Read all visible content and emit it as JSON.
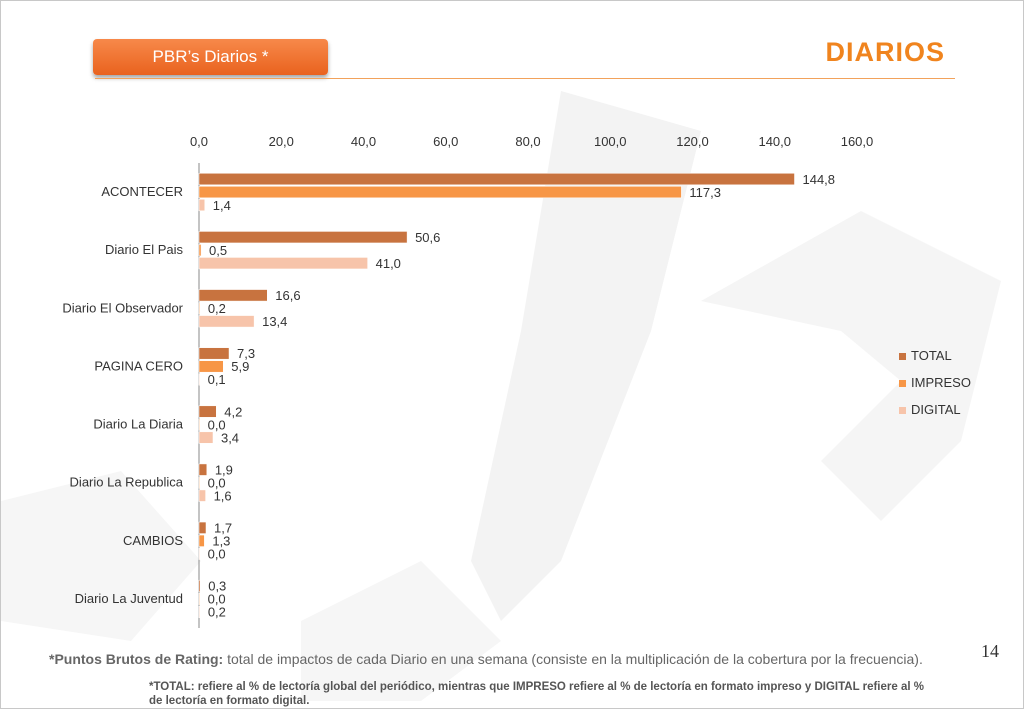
{
  "header": {
    "badge_label": "PBR’s Diarios  *",
    "title": "DIARIOS"
  },
  "page_number": "14",
  "footnotes": {
    "main_bold": "*Puntos Brutos de Rating:",
    "main_text": " total de impactos de cada Diario en una semana (consiste en la multiplicación de la cobertura por la frecuencia).",
    "secondary": "*TOTAL: refiere al % de lectoría global del periódico, mientras que IMPRESO refiere al % de lectoría en formato impreso y DIGITAL refiere al % de lectoría en formato digital."
  },
  "colors": {
    "accent": "#f0841e",
    "total": "#c8733f",
    "impreso": "#f79646",
    "digital": "#f7c4aa"
  },
  "chart_data": {
    "type": "bar",
    "orientation": "horizontal",
    "categories": [
      "ACONTECER",
      "Diario El Pais",
      "Diario El Observador",
      "PAGINA CERO",
      "Diario La Diaria",
      "Diario La Republica",
      "CAMBIOS",
      "Diario La Juventud"
    ],
    "series": [
      {
        "name": "TOTAL",
        "color": "#c8733f",
        "values": [
          144.8,
          50.6,
          16.6,
          7.3,
          4.2,
          1.9,
          1.7,
          0.3
        ],
        "labels": [
          "144,8",
          "50,6",
          "16,6",
          "7,3",
          "4,2",
          "1,9",
          "1,7",
          "0,3"
        ]
      },
      {
        "name": "IMPRESO",
        "color": "#f79646",
        "values": [
          117.3,
          0.5,
          0.2,
          5.9,
          0.0,
          0.0,
          1.3,
          0.0
        ],
        "labels": [
          "117,3",
          "0,5",
          "0,2",
          "5,9",
          "0,0",
          "0,0",
          "1,3",
          "0,0"
        ]
      },
      {
        "name": "DIGITAL",
        "color": "#f7c4aa",
        "values": [
          1.4,
          41.0,
          13.4,
          0.1,
          3.4,
          1.6,
          0.0,
          0.2
        ],
        "labels": [
          "1,4",
          "41,0",
          "13,4",
          "0,1",
          "3,4",
          "1,6",
          "0,0",
          "0,2"
        ]
      }
    ],
    "xlim": [
      0,
      160
    ],
    "ticks": [
      "0,0",
      "20,0",
      "40,0",
      "60,0",
      "80,0",
      "100,0",
      "120,0",
      "140,0",
      "160,0"
    ],
    "x_axis_position": "top",
    "legend": "right",
    "grid": false
  }
}
